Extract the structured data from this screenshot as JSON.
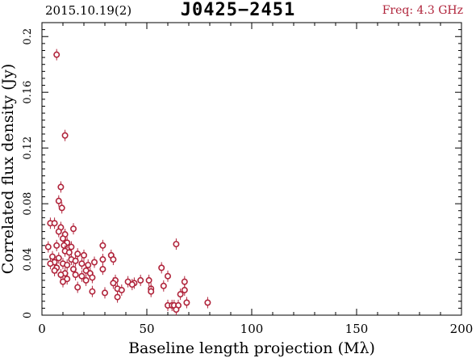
{
  "header": {
    "date": "2015.10.19(2)",
    "source": "J0425−2451",
    "freq": "Freq: 4.3 GHz"
  },
  "colors": {
    "axis": "#000000",
    "marker": "#b0243b"
  },
  "chart_data": {
    "type": "scatter",
    "title": "J0425−2451",
    "xlabel": "Baseline length projection (Mλ)",
    "ylabel": "Correlated flux density (Jy)",
    "xlim": [
      0,
      200
    ],
    "ylim": [
      0,
      0.21
    ],
    "xticks": [
      0,
      50,
      100,
      150,
      200
    ],
    "yticks": [
      0,
      0.04,
      0.08,
      0.12,
      0.16,
      0.2
    ],
    "ytick_labels": [
      "0",
      "0.04",
      "0.08",
      "0.12",
      "0.16",
      "0.2"
    ],
    "grid": false,
    "points": [
      {
        "x": 7,
        "y": 0.187
      },
      {
        "x": 11,
        "y": 0.129
      },
      {
        "x": 9,
        "y": 0.092
      },
      {
        "x": 8,
        "y": 0.082
      },
      {
        "x": 9.5,
        "y": 0.077
      },
      {
        "x": 4,
        "y": 0.066
      },
      {
        "x": 6,
        "y": 0.066
      },
      {
        "x": 9,
        "y": 0.063
      },
      {
        "x": 15,
        "y": 0.062
      },
      {
        "x": 8,
        "y": 0.06
      },
      {
        "x": 11,
        "y": 0.058
      },
      {
        "x": 10,
        "y": 0.055
      },
      {
        "x": 12,
        "y": 0.052
      },
      {
        "x": 10.5,
        "y": 0.05
      },
      {
        "x": 7,
        "y": 0.05
      },
      {
        "x": 3,
        "y": 0.049
      },
      {
        "x": 14,
        "y": 0.049
      },
      {
        "x": 29,
        "y": 0.05
      },
      {
        "x": 64,
        "y": 0.051
      },
      {
        "x": 11,
        "y": 0.046
      },
      {
        "x": 13,
        "y": 0.045
      },
      {
        "x": 17,
        "y": 0.044
      },
      {
        "x": 20,
        "y": 0.043
      },
      {
        "x": 33,
        "y": 0.043
      },
      {
        "x": 5,
        "y": 0.042
      },
      {
        "x": 8,
        "y": 0.041
      },
      {
        "x": 14,
        "y": 0.04
      },
      {
        "x": 16,
        "y": 0.039
      },
      {
        "x": 25,
        "y": 0.038
      },
      {
        "x": 29,
        "y": 0.04
      },
      {
        "x": 34,
        "y": 0.04
      },
      {
        "x": 6,
        "y": 0.038
      },
      {
        "x": 4,
        "y": 0.037
      },
      {
        "x": 10,
        "y": 0.037
      },
      {
        "x": 12,
        "y": 0.036
      },
      {
        "x": 19,
        "y": 0.037
      },
      {
        "x": 22,
        "y": 0.036
      },
      {
        "x": 7,
        "y": 0.034
      },
      {
        "x": 15,
        "y": 0.033
      },
      {
        "x": 57,
        "y": 0.034
      },
      {
        "x": 6,
        "y": 0.032
      },
      {
        "x": 21,
        "y": 0.032
      },
      {
        "x": 29,
        "y": 0.033
      },
      {
        "x": 11,
        "y": 0.03
      },
      {
        "x": 16,
        "y": 0.029
      },
      {
        "x": 23,
        "y": 0.03
      },
      {
        "x": 60,
        "y": 0.028
      },
      {
        "x": 9,
        "y": 0.029
      },
      {
        "x": 19,
        "y": 0.028
      },
      {
        "x": 24,
        "y": 0.027
      },
      {
        "x": 12,
        "y": 0.026
      },
      {
        "x": 21,
        "y": 0.025
      },
      {
        "x": 35,
        "y": 0.025
      },
      {
        "x": 47,
        "y": 0.025
      },
      {
        "x": 51,
        "y": 0.025
      },
      {
        "x": 10,
        "y": 0.024
      },
      {
        "x": 41,
        "y": 0.024
      },
      {
        "x": 44,
        "y": 0.023
      },
      {
        "x": 34,
        "y": 0.023
      },
      {
        "x": 43,
        "y": 0.022
      },
      {
        "x": 68,
        "y": 0.024
      },
      {
        "x": 58,
        "y": 0.021
      },
      {
        "x": 17,
        "y": 0.02
      },
      {
        "x": 36,
        "y": 0.019
      },
      {
        "x": 38,
        "y": 0.018
      },
      {
        "x": 52,
        "y": 0.019
      },
      {
        "x": 24,
        "y": 0.017
      },
      {
        "x": 68,
        "y": 0.018
      },
      {
        "x": 52,
        "y": 0.017
      },
      {
        "x": 30,
        "y": 0.016
      },
      {
        "x": 36,
        "y": 0.013
      },
      {
        "x": 66,
        "y": 0.015
      },
      {
        "x": 69,
        "y": 0.009
      },
      {
        "x": 79,
        "y": 0.009
      },
      {
        "x": 60,
        "y": 0.007
      },
      {
        "x": 62,
        "y": 0.007
      },
      {
        "x": 63,
        "y": 0.007
      },
      {
        "x": 65,
        "y": 0.007
      },
      {
        "x": 64,
        "y": 0.004
      }
    ]
  }
}
